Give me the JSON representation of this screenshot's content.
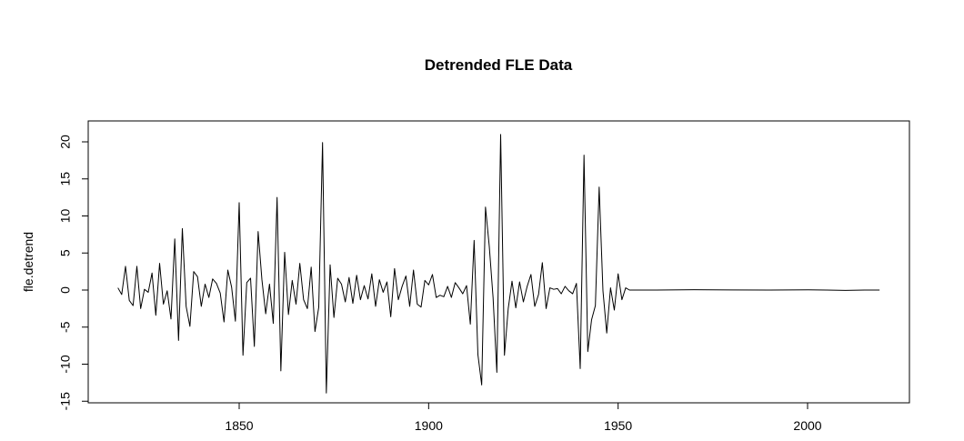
{
  "chart_data": {
    "type": "line",
    "title": "Detrended FLE Data",
    "xlabel": "",
    "ylabel": "fle.detrend",
    "xlim": [
      1818,
      2020
    ],
    "ylim": [
      -15,
      21
    ],
    "x_ticks": [
      1850,
      1900,
      1950,
      2000
    ],
    "y_ticks": [
      -15,
      -10,
      -5,
      0,
      5,
      10,
      15,
      20
    ],
    "grid": false,
    "series": [
      {
        "color": "#000000",
        "x": [
          1818,
          1819,
          1820,
          1821,
          1822,
          1823,
          1824,
          1825,
          1826,
          1827,
          1828,
          1829,
          1830,
          1831,
          1832,
          1833,
          1834,
          1835,
          1836,
          1837,
          1838,
          1839,
          1840,
          1841,
          1842,
          1843,
          1844,
          1845,
          1846,
          1847,
          1848,
          1849,
          1850,
          1851,
          1852,
          1853,
          1854,
          1855,
          1856,
          1857,
          1858,
          1859,
          1860,
          1861,
          1862,
          1863,
          1864,
          1865,
          1866,
          1867,
          1868,
          1869,
          1870,
          1871,
          1872,
          1873,
          1874,
          1875,
          1876,
          1877,
          1878,
          1879,
          1880,
          1881,
          1882,
          1883,
          1884,
          1885,
          1886,
          1887,
          1888,
          1889,
          1890,
          1891,
          1892,
          1893,
          1894,
          1895,
          1896,
          1897,
          1898,
          1899,
          1900,
          1901,
          1902,
          1903,
          1904,
          1905,
          1906,
          1907,
          1908,
          1909,
          1910,
          1911,
          1912,
          1913,
          1914,
          1915,
          1916,
          1917,
          1918,
          1919,
          1920,
          1921,
          1922,
          1923,
          1924,
          1925,
          1926,
          1927,
          1928,
          1929,
          1930,
          1931,
          1932,
          1933,
          1934,
          1935,
          1936,
          1937,
          1938,
          1939,
          1940,
          1941,
          1942,
          1943,
          1944,
          1945,
          1946,
          1947,
          1948,
          1949,
          1950,
          1951,
          1952,
          1953,
          1960,
          1970,
          1980,
          1990,
          2000,
          2005,
          2010,
          2015,
          2019
        ],
        "y": [
          0.3,
          -0.6,
          3.2,
          -1.4,
          -2.1,
          3.2,
          -2.5,
          0.1,
          -0.3,
          2.3,
          -3.4,
          3.6,
          -1.9,
          -0.1,
          -3.9,
          6.9,
          -6.8,
          8.3,
          -2.2,
          -4.9,
          2.5,
          1.8,
          -2.2,
          0.8,
          -1.0,
          1.5,
          0.9,
          -0.4,
          -4.3,
          2.7,
          0.4,
          -4.2,
          11.8,
          -8.8,
          1.0,
          1.6,
          -7.6,
          7.9,
          1.4,
          -3.2,
          0.8,
          -4.5,
          12.5,
          -10.9,
          5.1,
          -3.3,
          1.3,
          -1.9,
          3.6,
          -1.3,
          -2.5,
          3.1,
          -5.6,
          -2.3,
          19.9,
          -13.9,
          3.4,
          -3.7,
          1.6,
          0.8,
          -1.6,
          1.7,
          -1.8,
          2.0,
          -1.3,
          0.6,
          -1.2,
          2.2,
          -2.2,
          1.4,
          -0.3,
          1.1,
          -3.6,
          2.9,
          -1.3,
          0.5,
          1.9,
          -2.2,
          2.7,
          -1.9,
          -2.3,
          1.3,
          0.7,
          2.1,
          -1.0,
          -0.7,
          -0.9,
          0.5,
          -1.0,
          1.0,
          0.3,
          -0.5,
          0.6,
          -4.6,
          6.7,
          -8.7,
          -12.8,
          11.2,
          5.9,
          -1.0,
          -11.1,
          21.0,
          -8.8,
          -2.5,
          1.2,
          -2.4,
          1.1,
          -1.6,
          0.5,
          2.1,
          -2.2,
          -0.6,
          3.7,
          -2.5,
          0.3,
          0.1,
          0.2,
          -0.5,
          0.5,
          -0.1,
          -0.5,
          0.9,
          -10.6,
          18.2,
          -8.3,
          -4.0,
          -2.1,
          13.9,
          -0.1,
          -5.8,
          0.3,
          -2.7,
          2.2,
          -1.3,
          0.3,
          0.0,
          0.0,
          0.05,
          0.02,
          0.0,
          0.03,
          0.0,
          -0.05,
          0.0,
          0.0
        ]
      }
    ]
  }
}
